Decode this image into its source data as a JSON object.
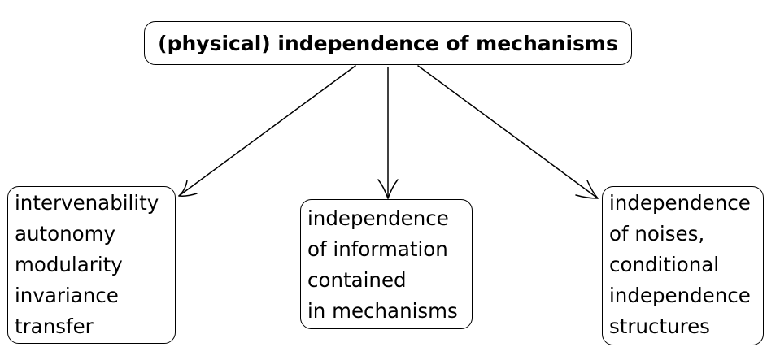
{
  "diagram": {
    "root": {
      "label": "(physical) independence of mechanisms"
    },
    "children": [
      {
        "id": "left",
        "lines": [
          "intervenability",
          "autonomy",
          "modularity",
          "invariance",
          "transfer"
        ]
      },
      {
        "id": "middle",
        "lines": [
          "independence",
          "of information",
          "contained",
          "in mechanisms"
        ]
      },
      {
        "id": "right",
        "lines": [
          "independence",
          "of noises,",
          "conditional",
          "independence",
          "structures"
        ]
      }
    ],
    "edges": [
      {
        "from": "root",
        "to": "left"
      },
      {
        "from": "root",
        "to": "middle"
      },
      {
        "from": "root",
        "to": "right"
      }
    ],
    "colors": {
      "stroke": "#000000",
      "background": "#ffffff"
    }
  }
}
